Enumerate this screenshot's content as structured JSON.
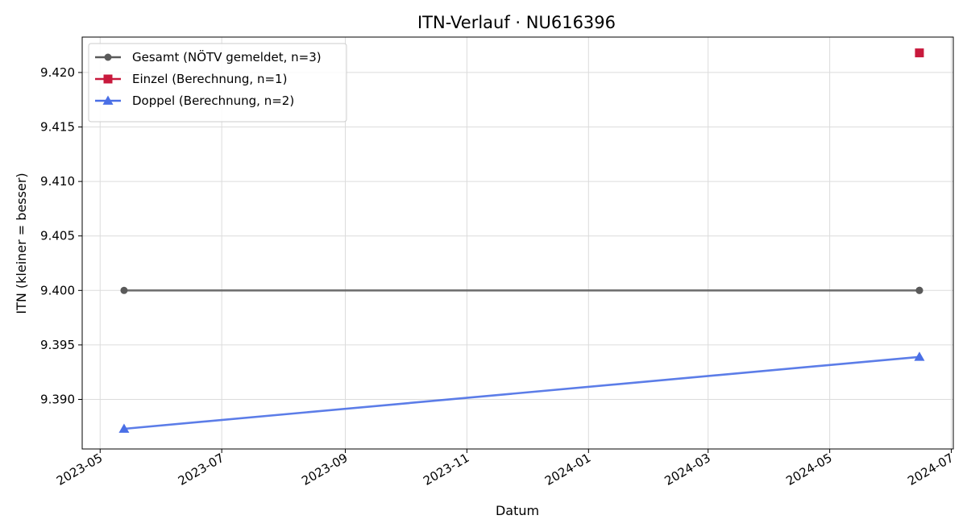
{
  "chart_data": {
    "type": "line",
    "title": "ITN-Verlauf · NU616396",
    "xlabel": "Datum",
    "ylabel": "ITN  (kleiner = besser)",
    "xlim": [
      "2023-04-22",
      "2024-07-02"
    ],
    "ylim": [
      9.38545,
      9.42325
    ],
    "x_ticks": [
      "2023-05",
      "2023-07",
      "2023-09",
      "2023-11",
      "2024-01",
      "2024-03",
      "2024-05",
      "2024-07"
    ],
    "y_ticks": [
      "9.390",
      "9.395",
      "9.400",
      "9.405",
      "9.410",
      "9.415",
      "9.420"
    ],
    "grid": true,
    "legend_position": "top-left",
    "series": [
      {
        "name": "Gesamt (NÖTV gemeldet, n=3)",
        "color": "#5a5a5a",
        "marker": "circle",
        "line": true,
        "points": [
          {
            "x": "2023-05-13",
            "y": 9.4
          },
          {
            "x": "2024-06-15",
            "y": 9.4
          },
          {
            "x": "2024-06-15",
            "y": 9.4
          }
        ]
      },
      {
        "name": "Einzel (Berechnung, n=1)",
        "color": "#c8193c",
        "marker": "square",
        "line": true,
        "points": [
          {
            "x": "2024-06-15",
            "y": 9.4218
          }
        ]
      },
      {
        "name": "Doppel (Berechnung, n=2)",
        "color": "#4a6fe6",
        "marker": "triangle",
        "line": true,
        "points": [
          {
            "x": "2023-05-13",
            "y": 9.3873
          },
          {
            "x": "2024-06-15",
            "y": 9.3939
          }
        ]
      }
    ]
  }
}
